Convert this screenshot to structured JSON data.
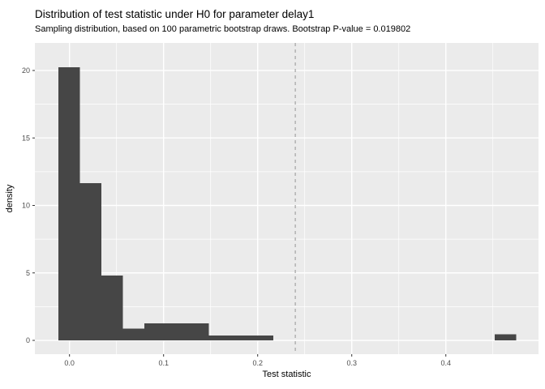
{
  "title": "Distribution of test statistic under H0 for parameter delay1",
  "subtitle": "Sampling distribution, based on 100 parametric bootstrap draws. Bootstrap P-value = 0.019802",
  "colors": {
    "page_bg": "#FFFFFF",
    "panel_bg": "#EBEBEB",
    "bar_fill": "#464646",
    "grid_major": "#FFFFFF",
    "grid_minor": "#FFFFFF",
    "tick_mark": "#333333",
    "tick_label": "#4D4D4D",
    "axis_title": "#000000",
    "title_text": "#000000",
    "vline": "#A3A3A3"
  },
  "chart_data": {
    "type": "bar",
    "subtype": "histogram",
    "title": "Distribution of test statistic under H0 for parameter delay1",
    "subtitle": "Sampling distribution, based on 100 parametric bootstrap draws. Bootstrap P-value = 0.019802",
    "xlabel": "Test statistic",
    "ylabel": "density",
    "n_bootstrap_draws": 100,
    "p_value": 0.019802,
    "xlim": [
      -0.0368,
      0.4985
    ],
    "ylim": [
      -1.02,
      22.04
    ],
    "grid": "major+minor",
    "legend": "none",
    "bin_width": 0.02285,
    "bins": [
      {
        "x0": -0.0118,
        "x1": 0.011,
        "density": 20.25
      },
      {
        "x0": 0.011,
        "x1": 0.0339,
        "density": 11.65
      },
      {
        "x0": 0.0339,
        "x1": 0.0567,
        "density": 4.8
      },
      {
        "x0": 0.0567,
        "x1": 0.0796,
        "density": 0.86
      },
      {
        "x0": 0.0796,
        "x1": 0.1025,
        "density": 1.25
      },
      {
        "x0": 0.1025,
        "x1": 0.1253,
        "density": 1.25
      },
      {
        "x0": 0.1253,
        "x1": 0.1482,
        "density": 1.25
      },
      {
        "x0": 0.1482,
        "x1": 0.171,
        "density": 0.36
      },
      {
        "x0": 0.171,
        "x1": 0.1939,
        "density": 0.36
      },
      {
        "x0": 0.1939,
        "x1": 0.2167,
        "density": 0.36
      },
      {
        "x0": 0.4519,
        "x1": 0.4747,
        "density": 0.46
      }
    ],
    "vline": {
      "x": 0.24,
      "style": "dashed"
    },
    "x_ticks": [
      {
        "value": 0.0,
        "label": "0.0"
      },
      {
        "value": 0.1,
        "label": "0.1"
      },
      {
        "value": 0.2,
        "label": "0.2"
      },
      {
        "value": 0.3,
        "label": "0.3"
      },
      {
        "value": 0.4,
        "label": "0.4"
      }
    ],
    "y_ticks": [
      {
        "value": 0,
        "label": "0"
      },
      {
        "value": 5,
        "label": "5"
      },
      {
        "value": 10,
        "label": "10"
      },
      {
        "value": 15,
        "label": "15"
      },
      {
        "value": 20,
        "label": "20"
      }
    ],
    "x_minor": [
      0.05,
      0.15,
      0.25,
      0.35,
      0.45
    ],
    "y_minor": [
      2.5,
      7.5,
      12.5,
      17.5
    ]
  }
}
